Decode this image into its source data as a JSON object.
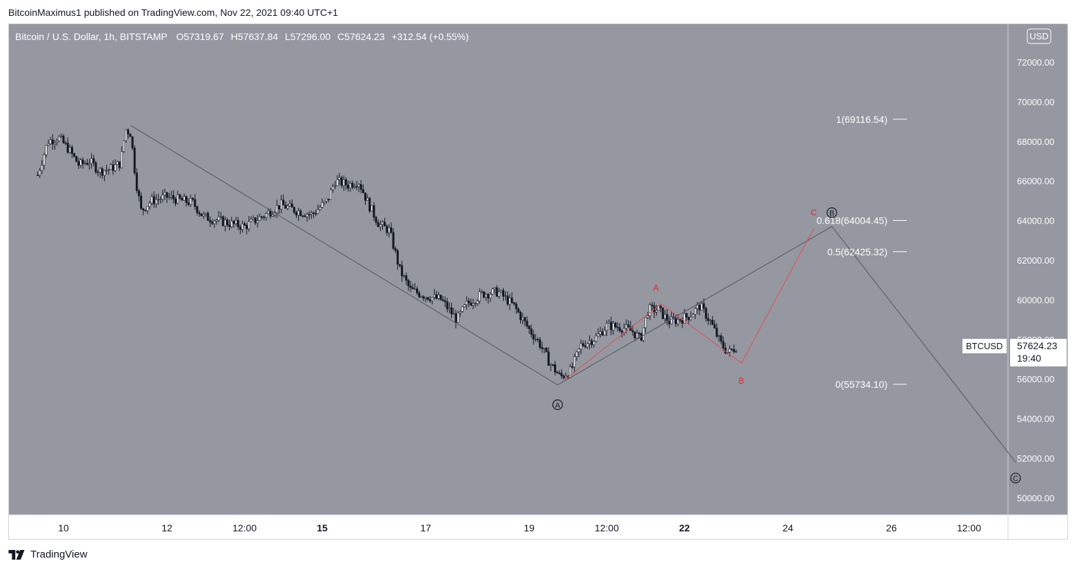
{
  "header": {
    "published_text": "BitcoinMaximus1 published on TradingView.com, Nov 22, 2021 09:40 UTC+1"
  },
  "legend": {
    "symbol": "Bitcoin / U.S. Dollar, 1h, BITSTAMP",
    "o_label": "O",
    "o_value": "57319.67",
    "h_label": "H",
    "h_value": "57637.84",
    "l_label": "L",
    "l_value": "57296.00",
    "c_label": "C",
    "c_value": "57624.23",
    "change": "+312.54 (+0.55%)"
  },
  "currency_button": "USD",
  "price_tag": {
    "ticker": "BTCUSD",
    "price": "57624.23",
    "countdown": "19:40"
  },
  "footer": {
    "brand": "TradingView"
  },
  "colors": {
    "chart_bg": "#9598a1",
    "line_gray": "#5d606b",
    "line_red": "#e05050",
    "label_red": "#e4262c",
    "text_white": "#ffffff",
    "text_dark": "#131722"
  },
  "icons": {
    "logo": "tradingview-logo-icon"
  },
  "chart_data": {
    "type": "candlestick",
    "title": "Bitcoin / U.S. Dollar, 1h, BITSTAMP",
    "ylim": [
      49000,
      73500
    ],
    "y_ticks": [
      "72000.00",
      "70000.00",
      "68000.00",
      "66000.00",
      "64000.00",
      "62000.00",
      "60000.00",
      "58000.00",
      "56000.00",
      "54000.00",
      "52000.00",
      "50000.00"
    ],
    "y_tick_values": [
      72000,
      70000,
      68000,
      66000,
      64000,
      62000,
      60000,
      58000,
      56000,
      54000,
      52000,
      50000
    ],
    "x_ticks": [
      {
        "label": "10",
        "t": 0.5,
        "bold": false
      },
      {
        "label": "12",
        "t": 2.5,
        "bold": false
      },
      {
        "label": "12:00",
        "t": 4.0,
        "bold": false
      },
      {
        "label": "15",
        "t": 5.5,
        "bold": true
      },
      {
        "label": "17",
        "t": 7.5,
        "bold": false
      },
      {
        "label": "19",
        "t": 9.5,
        "bold": false
      },
      {
        "label": "12:00",
        "t": 11.0,
        "bold": false
      },
      {
        "label": "22",
        "t": 12.5,
        "bold": true
      },
      {
        "label": "24",
        "t": 14.5,
        "bold": false
      },
      {
        "label": "26",
        "t": 16.5,
        "bold": false
      },
      {
        "label": "12:00",
        "t": 18.0,
        "bold": false
      }
    ],
    "price_path": [
      {
        "t": 0.0,
        "p": 66300
      },
      {
        "t": 0.2,
        "p": 68000
      },
      {
        "t": 0.4,
        "p": 68200
      },
      {
        "t": 0.6,
        "p": 67600
      },
      {
        "t": 0.8,
        "p": 66800
      },
      {
        "t": 1.0,
        "p": 67000
      },
      {
        "t": 1.2,
        "p": 66500
      },
      {
        "t": 1.4,
        "p": 66600
      },
      {
        "t": 1.6,
        "p": 66900
      },
      {
        "t": 1.7,
        "p": 68600
      },
      {
        "t": 1.8,
        "p": 68400
      },
      {
        "t": 1.9,
        "p": 66000
      },
      {
        "t": 2.0,
        "p": 64500
      },
      {
        "t": 2.2,
        "p": 65000
      },
      {
        "t": 2.5,
        "p": 65200
      },
      {
        "t": 2.8,
        "p": 65000
      },
      {
        "t": 3.0,
        "p": 64900
      },
      {
        "t": 3.2,
        "p": 64200
      },
      {
        "t": 3.5,
        "p": 64000
      },
      {
        "t": 3.8,
        "p": 63800
      },
      {
        "t": 4.0,
        "p": 63700
      },
      {
        "t": 4.2,
        "p": 64000
      },
      {
        "t": 4.4,
        "p": 64300
      },
      {
        "t": 4.7,
        "p": 64800
      },
      {
        "t": 5.0,
        "p": 64500
      },
      {
        "t": 5.3,
        "p": 64300
      },
      {
        "t": 5.6,
        "p": 65000
      },
      {
        "t": 5.75,
        "p": 66000
      },
      {
        "t": 6.0,
        "p": 65800
      },
      {
        "t": 6.2,
        "p": 66000
      },
      {
        "t": 6.4,
        "p": 64800
      },
      {
        "t": 6.6,
        "p": 63800
      },
      {
        "t": 6.8,
        "p": 63500
      },
      {
        "t": 7.0,
        "p": 61500
      },
      {
        "t": 7.2,
        "p": 60500
      },
      {
        "t": 7.5,
        "p": 60200
      },
      {
        "t": 7.8,
        "p": 60000
      },
      {
        "t": 8.1,
        "p": 59000
      },
      {
        "t": 8.3,
        "p": 59800
      },
      {
        "t": 8.6,
        "p": 60300
      },
      {
        "t": 8.9,
        "p": 60400
      },
      {
        "t": 9.2,
        "p": 59700
      },
      {
        "t": 9.5,
        "p": 58500
      },
      {
        "t": 9.7,
        "p": 57800
      },
      {
        "t": 9.9,
        "p": 56800
      },
      {
        "t": 10.1,
        "p": 56100
      },
      {
        "t": 10.3,
        "p": 56400
      },
      {
        "t": 10.5,
        "p": 57700
      },
      {
        "t": 10.8,
        "p": 58100
      },
      {
        "t": 11.0,
        "p": 58700
      },
      {
        "t": 11.3,
        "p": 58600
      },
      {
        "t": 11.5,
        "p": 58400
      },
      {
        "t": 11.65,
        "p": 58000
      },
      {
        "t": 11.8,
        "p": 59500
      },
      {
        "t": 12.0,
        "p": 59500
      },
      {
        "t": 12.2,
        "p": 58900
      },
      {
        "t": 12.4,
        "p": 59000
      },
      {
        "t": 12.6,
        "p": 59200
      },
      {
        "t": 12.8,
        "p": 59700
      },
      {
        "t": 13.0,
        "p": 58900
      },
      {
        "t": 13.2,
        "p": 57800
      },
      {
        "t": 13.35,
        "p": 57300
      },
      {
        "t": 13.5,
        "p": 57624
      }
    ],
    "wave_path_gray": [
      {
        "t": 1.8,
        "p": 68800
      },
      {
        "t": 10.05,
        "p": 55700
      },
      {
        "t": 15.35,
        "p": 63700
      },
      {
        "t": 18.9,
        "p": 51800
      }
    ],
    "wave_path_red": [
      {
        "t": 10.2,
        "p": 56000
      },
      {
        "t": 12.05,
        "p": 59800
      },
      {
        "t": 13.6,
        "p": 56800
      },
      {
        "t": 15.0,
        "p": 63600
      }
    ],
    "wave_labels": [
      {
        "text": "A",
        "circled": true,
        "color": "black",
        "t": 10.05,
        "p": 54700
      },
      {
        "text": "B",
        "circled": true,
        "color": "black",
        "t": 15.35,
        "p": 64400
      },
      {
        "text": "C",
        "circled": true,
        "color": "black",
        "t": 18.9,
        "p": 51000
      },
      {
        "text": "A",
        "circled": false,
        "color": "red",
        "t": 11.95,
        "p": 60600
      },
      {
        "text": "B",
        "circled": false,
        "color": "red",
        "t": 13.6,
        "p": 55900
      },
      {
        "text": "C",
        "circled": false,
        "color": "red",
        "t": 15.0,
        "p": 64400
      }
    ],
    "fib_levels": [
      {
        "label": "1(69116.54)",
        "value": 69116.54
      },
      {
        "label": "0.618(64004.45)",
        "value": 64004.45
      },
      {
        "label": "0.5(62425.32)",
        "value": 62425.32
      },
      {
        "label": "0(55734.10)",
        "value": 55734.1
      }
    ],
    "fib_line_t": [
      16.53,
      16.8
    ]
  }
}
